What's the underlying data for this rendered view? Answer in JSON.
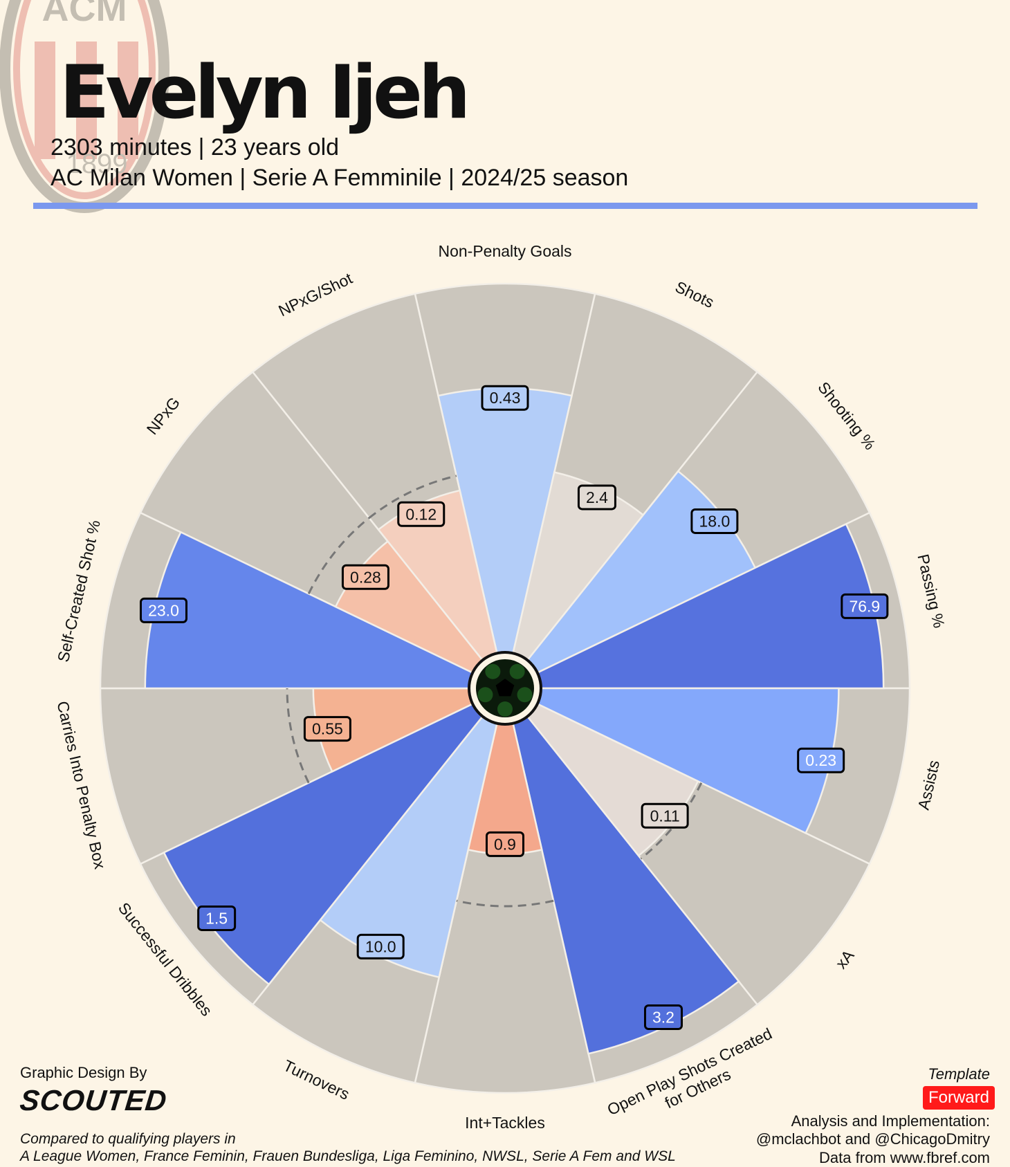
{
  "header": {
    "player_name": "Evelyn Ijeh",
    "line1": "2303 minutes | 23 years old",
    "line2": "AC Milan Women | Serie A Femminile | 2024/25 season"
  },
  "logo": {
    "top_text": "ACM",
    "year_text": "1899"
  },
  "colors": {
    "background": "#fdf5e6",
    "outer_ring": "#cbc6bd",
    "divider": "#7b98ee",
    "template_badge": "#ff1a1a"
  },
  "chart_data": {
    "type": "radial_bar",
    "title": "Evelyn Ijeh",
    "percentile_scale": [
      0,
      100
    ],
    "reference_line_percentile": 50,
    "categories": [
      {
        "label": "Non-Penalty Goals",
        "value": "0.43",
        "percentile": 72,
        "color": "#b3cdf8"
      },
      {
        "label": "Shots",
        "value": "2.4",
        "percentile": 51,
        "color": "#e2dbd4"
      },
      {
        "label": "Shooting %",
        "value": "18.0",
        "percentile": 66,
        "color": "#a1c1fb"
      },
      {
        "label": "Passing %",
        "value": "76.9",
        "percentile": 93,
        "color": "#5672de"
      },
      {
        "label": "Assists",
        "value": "0.23",
        "percentile": 81,
        "color": "#84a8fb"
      },
      {
        "label": "xA",
        "value": "0.11",
        "percentile": 49,
        "color": "#e4dbd5"
      },
      {
        "label": "Open Play Shots Created for Others",
        "value": "3.2",
        "percentile": 92,
        "color": "#5370dc"
      },
      {
        "label": "Int+Tackles",
        "value": "0.9",
        "percentile": 36,
        "color": "#f4a88c"
      },
      {
        "label": "Turnovers",
        "value": "10.0",
        "percentile": 71,
        "color": "#b3cdf8"
      },
      {
        "label": "Successful Dribbles",
        "value": "1.5",
        "percentile": 93,
        "color": "#5370dc"
      },
      {
        "label": "Carries Into Penalty Box",
        "value": "0.55",
        "percentile": 43,
        "color": "#f4b292"
      },
      {
        "label": "Self-Created Shot %",
        "value": "23.0",
        "percentile": 88,
        "color": "#6586eb"
      },
      {
        "label": "NPxG",
        "value": "0.28",
        "percentile": 42,
        "color": "#f5c0a8"
      },
      {
        "label": "NPxG/Shot",
        "value": "0.12",
        "percentile": 46,
        "color": "#f4cfbe"
      }
    ]
  },
  "footer": {
    "credit_label": "Graphic Design By",
    "brand": "SCOUTED",
    "comparison_line1": "Compared to qualifying players in",
    "comparison_line2": "A League Women, France Feminin, Frauen Bundesliga, Liga Feminino, NWSL, Serie A Fem and WSL",
    "template_label": "Template",
    "template_value": "Forward",
    "analysis_line1": "Analysis and Implementation:",
    "analysis_line2": "@mclachbot and @ChicagoDmitry",
    "analysis_line3": "Data from www.fbref.com"
  }
}
